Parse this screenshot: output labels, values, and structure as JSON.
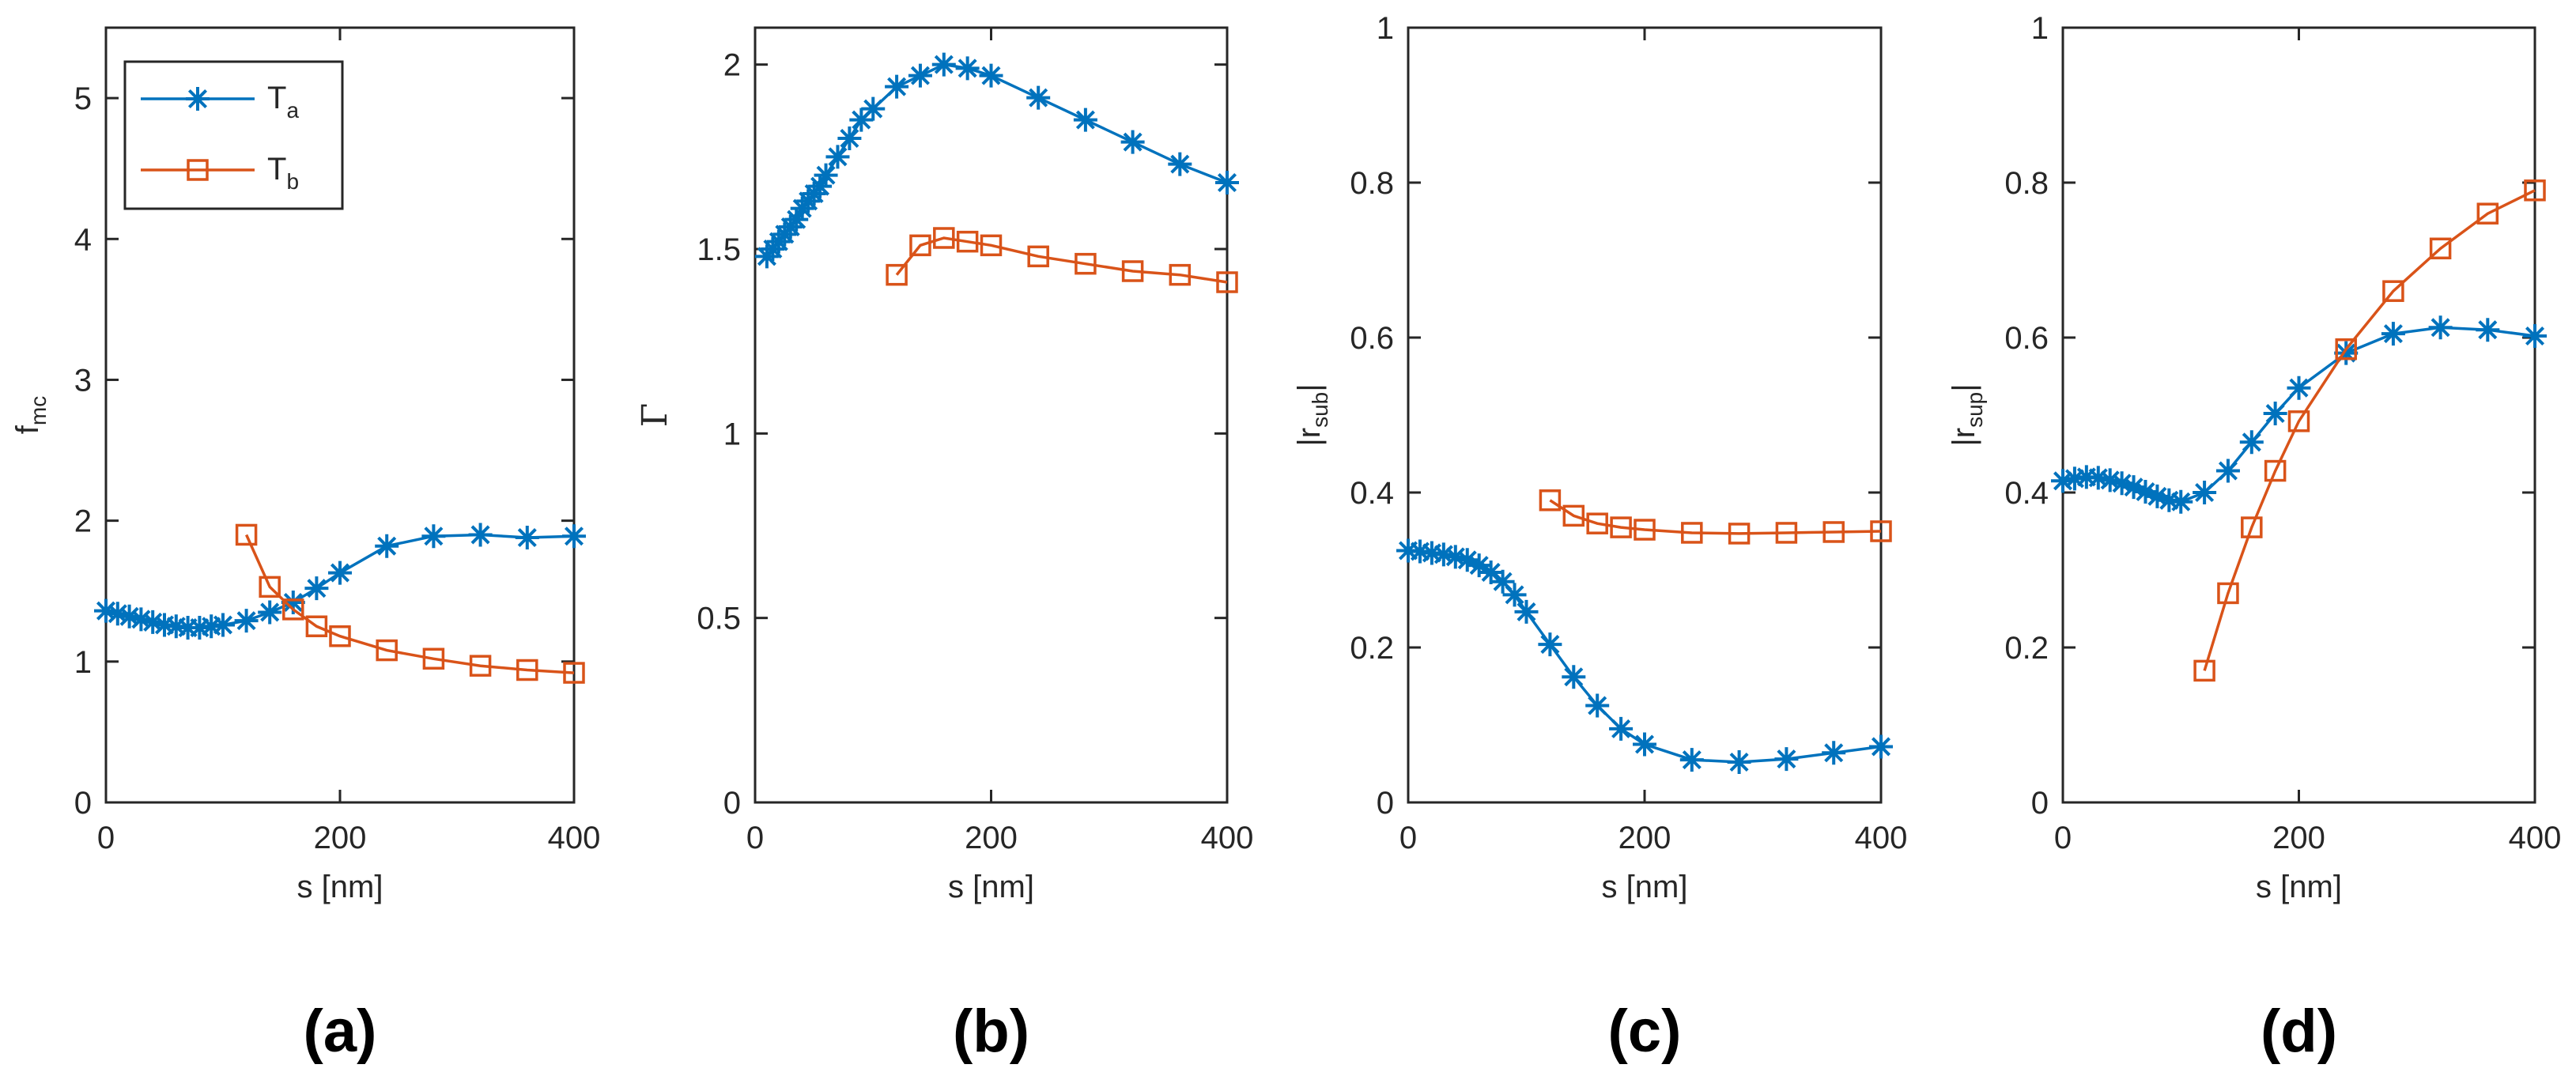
{
  "colors": {
    "Ta": "#0072BD",
    "Tb": "#D95319",
    "axes": "#262626",
    "background": "#FFFFFF"
  },
  "legend": {
    "placement": "top-left of panel (a)",
    "entries": [
      {
        "symbol": "T",
        "sub": "a",
        "marker": "asterisk",
        "series": "Ta"
      },
      {
        "symbol": "T",
        "sub": "b",
        "marker": "square",
        "series": "Tb"
      }
    ]
  },
  "chart_data": [
    {
      "type": "line",
      "panel_label": "(a)",
      "xlabel": "s [nm]",
      "ylabel": {
        "base": "f",
        "sub": "mc"
      },
      "xlim": [
        0,
        400
      ],
      "ylim": [
        0,
        5.5
      ],
      "xticks": [
        0,
        200,
        400
      ],
      "yticks": [
        0,
        1,
        2,
        3,
        4,
        5
      ],
      "series": [
        {
          "name": "Ta",
          "marker": "asterisk",
          "x": [
            0,
            10,
            20,
            30,
            40,
            50,
            60,
            70,
            80,
            90,
            100,
            120,
            140,
            160,
            180,
            200,
            240,
            280,
            320,
            360,
            400
          ],
          "y": [
            1.36,
            1.34,
            1.32,
            1.3,
            1.28,
            1.26,
            1.25,
            1.24,
            1.24,
            1.25,
            1.26,
            1.29,
            1.35,
            1.42,
            1.52,
            1.63,
            1.82,
            1.89,
            1.9,
            1.88,
            1.89
          ]
        },
        {
          "name": "Tb",
          "marker": "square",
          "x": [
            120,
            140,
            160,
            180,
            200,
            240,
            280,
            320,
            360,
            400
          ],
          "y": [
            1.9,
            1.53,
            1.37,
            1.25,
            1.18,
            1.08,
            1.02,
            0.97,
            0.94,
            0.92
          ]
        }
      ]
    },
    {
      "type": "line",
      "panel_label": "(b)",
      "xlabel": "s [nm]",
      "ylabel": {
        "base": "Γ",
        "sub": ""
      },
      "xlim": [
        0,
        400
      ],
      "ylim": [
        0,
        2.1
      ],
      "xticks": [
        0,
        200,
        400
      ],
      "yticks": [
        0,
        0.5,
        1,
        1.5,
        2
      ],
      "series": [
        {
          "name": "Ta",
          "marker": "asterisk",
          "x": [
            10,
            15,
            20,
            25,
            30,
            35,
            40,
            45,
            50,
            55,
            60,
            70,
            80,
            90,
            100,
            120,
            140,
            160,
            180,
            200,
            240,
            280,
            320,
            360,
            400
          ],
          "y": [
            1.48,
            1.5,
            1.52,
            1.54,
            1.56,
            1.58,
            1.61,
            1.63,
            1.65,
            1.67,
            1.7,
            1.75,
            1.8,
            1.85,
            1.88,
            1.94,
            1.97,
            2.0,
            1.99,
            1.97,
            1.91,
            1.85,
            1.79,
            1.73,
            1.68
          ]
        },
        {
          "name": "Tb",
          "marker": "square",
          "x": [
            120,
            140,
            160,
            180,
            200,
            240,
            280,
            320,
            360,
            400
          ],
          "y": [
            1.43,
            1.51,
            1.53,
            1.52,
            1.51,
            1.48,
            1.46,
            1.44,
            1.43,
            1.41
          ]
        }
      ]
    },
    {
      "type": "line",
      "panel_label": "(c)",
      "xlabel": "s [nm]",
      "ylabel": {
        "base": "|r",
        "sub": "sub",
        "suffix": "|"
      },
      "xlim": [
        0,
        400
      ],
      "ylim": [
        0,
        1
      ],
      "xticks": [
        0,
        200,
        400
      ],
      "yticks": [
        0,
        0.2,
        0.4,
        0.6,
        0.8,
        1
      ],
      "series": [
        {
          "name": "Ta",
          "marker": "asterisk",
          "x": [
            0,
            10,
            20,
            30,
            40,
            50,
            60,
            70,
            80,
            90,
            100,
            120,
            140,
            160,
            180,
            200,
            240,
            280,
            320,
            360,
            400
          ],
          "y": [
            0.325,
            0.324,
            0.322,
            0.32,
            0.317,
            0.313,
            0.306,
            0.297,
            0.285,
            0.268,
            0.246,
            0.204,
            0.162,
            0.125,
            0.095,
            0.075,
            0.055,
            0.052,
            0.056,
            0.064,
            0.072
          ]
        },
        {
          "name": "Tb",
          "marker": "square",
          "x": [
            120,
            140,
            160,
            180,
            200,
            240,
            280,
            320,
            360,
            400
          ],
          "y": [
            0.39,
            0.37,
            0.36,
            0.355,
            0.352,
            0.348,
            0.347,
            0.348,
            0.349,
            0.35
          ]
        }
      ]
    },
    {
      "type": "line",
      "panel_label": "(d)",
      "xlabel": "s [nm]",
      "ylabel": {
        "base": "|r",
        "sub": "sup",
        "suffix": "|"
      },
      "xlim": [
        0,
        400
      ],
      "ylim": [
        0,
        1
      ],
      "xticks": [
        0,
        200,
        400
      ],
      "yticks": [
        0,
        0.2,
        0.4,
        0.6,
        0.8,
        1
      ],
      "series": [
        {
          "name": "Ta",
          "marker": "asterisk",
          "x": [
            0,
            10,
            20,
            30,
            40,
            50,
            60,
            70,
            80,
            90,
            100,
            120,
            140,
            160,
            180,
            200,
            240,
            280,
            320,
            360,
            400
          ],
          "y": [
            0.415,
            0.418,
            0.42,
            0.419,
            0.416,
            0.412,
            0.407,
            0.401,
            0.395,
            0.39,
            0.388,
            0.4,
            0.428,
            0.465,
            0.502,
            0.535,
            0.58,
            0.605,
            0.613,
            0.61,
            0.602
          ]
        },
        {
          "name": "Tb",
          "marker": "square",
          "x": [
            120,
            140,
            160,
            180,
            200,
            240,
            280,
            320,
            360,
            400
          ],
          "y": [
            0.17,
            0.27,
            0.355,
            0.428,
            0.492,
            0.585,
            0.66,
            0.715,
            0.76,
            0.79
          ]
        }
      ]
    }
  ]
}
